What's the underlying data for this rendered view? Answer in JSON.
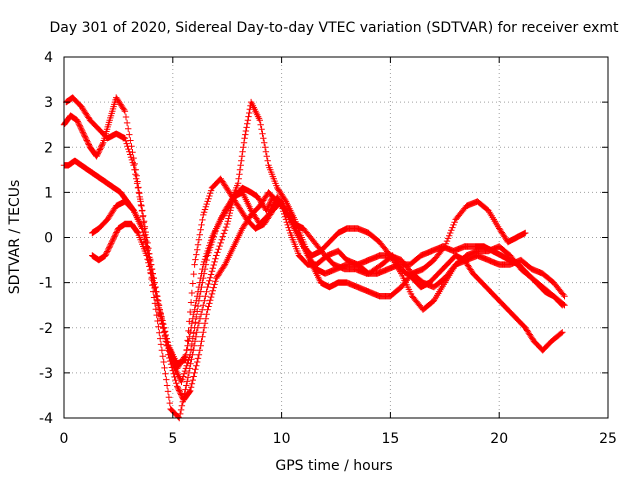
{
  "chart_data": {
    "type": "scatter",
    "title": "Day 301 of 2020, Sidereal Day-to-day VTEC variation (SDTVAR) for receiver exmt",
    "xlabel": "GPS time / hours",
    "ylabel": "SDTVAR / TECUs",
    "xlim": [
      0,
      25
    ],
    "ylim": [
      -4,
      4
    ],
    "xticks": [
      0,
      5,
      10,
      15,
      20,
      25
    ],
    "yticks": [
      -4,
      -3,
      -2,
      -1,
      0,
      1,
      2,
      3,
      4
    ],
    "xtick_labels": [
      "0",
      "5",
      "10",
      "15",
      "20",
      "25"
    ],
    "ytick_labels": [
      "-4",
      "-3",
      "-2",
      "-1",
      "0",
      "1",
      "2",
      "3",
      "4"
    ],
    "grid": true,
    "marker": "+",
    "color": "#ff0000",
    "series": [
      {
        "x": [
          0.0,
          0.3,
          0.6,
          0.9,
          1.2,
          1.5,
          1.8,
          2.1,
          2.4,
          2.8,
          3.3,
          3.7,
          4.1,
          4.5,
          4.9,
          5.3,
          5.7,
          6.1,
          6.6,
          7.0,
          7.5,
          7.8,
          8.2,
          8.6,
          8.9,
          9.3,
          9.6,
          10.0,
          10.4,
          10.8,
          11.2,
          11.6,
          12.1,
          12.6,
          13.0,
          13.5,
          14.0,
          14.6,
          15.1,
          15.5,
          16.0,
          16.4,
          16.8,
          17.2,
          17.6,
          18.0,
          18.4,
          18.8,
          19.2,
          19.6,
          20.0,
          20.4,
          20.8,
          21.2,
          21.6,
          22.0,
          22.4,
          22.9
        ],
        "y": [
          2.5,
          2.7,
          2.6,
          2.3,
          2.0,
          1.8,
          2.1,
          2.6,
          3.1,
          2.8,
          1.5,
          0.2,
          -1.2,
          -2.5,
          -3.8,
          -4.0,
          -3.1,
          -2.1,
          -1.1,
          -0.4,
          0.3,
          0.9,
          1.1,
          1.0,
          0.9,
          0.6,
          0.9,
          0.7,
          0.1,
          -0.4,
          -0.6,
          -0.6,
          -0.4,
          -0.3,
          -0.5,
          -0.6,
          -0.8,
          -0.6,
          -0.4,
          -0.7,
          -0.9,
          -1.1,
          -1.0,
          -0.8,
          -0.6,
          -0.4,
          -0.5,
          -0.8,
          -1.0,
          -1.2,
          -1.4,
          -1.6,
          -1.8,
          -2.0,
          -2.3,
          -2.5,
          -2.3,
          -2.1
        ]
      },
      {
        "x": [
          0.0,
          0.2,
          0.5,
          0.8,
          1.1,
          1.4,
          1.7,
          2.0,
          2.3,
          2.6,
          2.9,
          3.2,
          3.6,
          4.0,
          4.4,
          4.8,
          5.2,
          5.5,
          5.8,
          6.2,
          6.6,
          7.0,
          7.4,
          7.8,
          8.2,
          8.6,
          9.0,
          9.4,
          9.8,
          10.2,
          10.6,
          11.0,
          11.5,
          12.0,
          12.4,
          12.9,
          13.4,
          13.9,
          14.4,
          14.9,
          15.4,
          15.9,
          16.4,
          16.9,
          17.4,
          17.9,
          18.4,
          18.9,
          19.3,
          19.7,
          20.1,
          20.5,
          20.9,
          21.3,
          21.7,
          22.1,
          22.5,
          23.0
        ],
        "y": [
          1.6,
          1.6,
          1.7,
          1.6,
          1.5,
          1.4,
          1.3,
          1.2,
          1.1,
          1.0,
          0.8,
          0.6,
          0.2,
          -0.6,
          -1.6,
          -2.6,
          -3.3,
          -3.6,
          -3.4,
          -2.6,
          -1.6,
          -0.9,
          -0.6,
          -0.2,
          0.2,
          0.5,
          0.7,
          1.0,
          0.8,
          0.6,
          0.3,
          0.2,
          -0.1,
          -0.4,
          -0.6,
          -0.7,
          -0.7,
          -0.8,
          -0.8,
          -0.7,
          -0.6,
          -0.6,
          -0.4,
          -0.3,
          -0.2,
          -0.3,
          -0.2,
          -0.2,
          -0.2,
          -0.3,
          -0.4,
          -0.5,
          -0.6,
          -0.8,
          -1.0,
          -1.2,
          -1.3,
          -1.5
        ]
      },
      {
        "x": [
          0.1,
          0.4,
          0.8,
          1.2,
          1.6,
          2.0,
          2.4,
          2.8,
          3.2,
          3.6,
          4.0,
          4.4,
          4.8,
          5.2,
          5.6,
          6.0,
          6.4,
          6.8,
          7.2,
          7.6,
          8.0,
          8.4,
          8.8,
          9.2,
          9.6,
          10.0,
          10.4,
          10.8,
          11.2,
          11.6,
          12.0,
          12.5,
          13.0,
          13.5,
          14.0,
          14.5,
          15.0,
          15.5,
          16.0,
          16.5,
          17.0,
          17.5,
          18.0,
          18.5,
          19.0,
          19.5,
          20.0,
          20.5,
          21.0,
          21.5,
          22.0,
          22.5,
          23.0
        ],
        "y": [
          3.0,
          3.1,
          2.9,
          2.6,
          2.4,
          2.2,
          2.3,
          2.2,
          1.6,
          0.6,
          -0.6,
          -1.6,
          -2.4,
          -2.8,
          -2.7,
          -0.6,
          0.5,
          1.1,
          1.3,
          1.0,
          0.7,
          0.4,
          0.2,
          0.3,
          0.6,
          0.8,
          0.4,
          0.0,
          -0.4,
          -0.7,
          -0.8,
          -0.7,
          -0.6,
          -0.6,
          -0.5,
          -0.4,
          -0.4,
          -0.5,
          -0.8,
          -1.0,
          -1.1,
          -0.9,
          -0.6,
          -0.5,
          -0.4,
          -0.5,
          -0.6,
          -0.6,
          -0.5,
          -0.7,
          -0.8,
          -1.0,
          -1.3
        ]
      },
      {
        "x": [
          1.3,
          1.6,
          2.0,
          2.4,
          2.8,
          3.2,
          3.6,
          4.0,
          4.4,
          4.8,
          5.2,
          5.6,
          6.0,
          6.4,
          6.8,
          7.2,
          7.6,
          8.0,
          8.3,
          8.6,
          9.0,
          9.4,
          9.8,
          10.2,
          10.6,
          11.0,
          11.4,
          11.8,
          12.2,
          12.6,
          13.0,
          13.5,
          14.0,
          14.5,
          15.0,
          15.5,
          16.0,
          16.5,
          17.0,
          17.5,
          18.0,
          18.5,
          19.0,
          19.5,
          20.0,
          20.4,
          20.8,
          21.2
        ],
        "y": [
          0.1,
          0.2,
          0.4,
          0.7,
          0.8,
          0.6,
          0.2,
          -0.6,
          -1.6,
          -2.4,
          -2.9,
          -2.6,
          -1.6,
          -0.6,
          0.0,
          0.4,
          0.7,
          1.2,
          2.2,
          3.0,
          2.6,
          1.6,
          1.1,
          0.8,
          0.4,
          -0.1,
          -0.6,
          -1.0,
          -1.1,
          -1.0,
          -1.0,
          -1.1,
          -1.2,
          -1.3,
          -1.3,
          -1.1,
          -0.8,
          -0.7,
          -0.5,
          -0.2,
          0.4,
          0.7,
          0.8,
          0.6,
          0.2,
          -0.1,
          0.0,
          0.1
        ]
      },
      {
        "x": [
          1.3,
          1.6,
          1.9,
          2.2,
          2.5,
          2.8,
          3.1,
          3.4,
          3.8,
          4.2,
          4.6,
          5.0,
          5.4,
          5.8,
          6.2,
          6.6,
          7.0,
          7.4,
          7.8,
          8.2,
          8.6,
          9.0,
          9.4,
          9.8,
          10.2,
          10.6,
          11.0,
          11.4,
          11.8,
          12.2,
          12.6,
          13.0,
          13.5,
          14.0,
          14.5,
          15.0,
          15.5,
          16.0,
          16.5,
          17.0,
          17.5,
          18.0,
          18.5,
          19.0,
          19.5,
          20.0,
          20.5,
          21.0,
          21.5,
          22.0,
          22.5,
          22.9
        ],
        "y": [
          -0.4,
          -0.5,
          -0.4,
          -0.1,
          0.2,
          0.3,
          0.3,
          0.1,
          -0.4,
          -1.2,
          -2.1,
          -2.8,
          -3.2,
          -2.6,
          -1.4,
          -0.4,
          0.2,
          0.6,
          0.9,
          1.0,
          0.6,
          0.3,
          0.5,
          0.9,
          0.6,
          0.2,
          -0.2,
          -0.4,
          -0.3,
          -0.1,
          0.1,
          0.2,
          0.2,
          0.1,
          -0.1,
          -0.4,
          -0.8,
          -1.3,
          -1.6,
          -1.4,
          -1.0,
          -0.6,
          -0.4,
          -0.3,
          -0.3,
          -0.2,
          -0.4,
          -0.7,
          -0.9,
          -1.1,
          -1.3,
          -1.5
        ]
      }
    ]
  }
}
